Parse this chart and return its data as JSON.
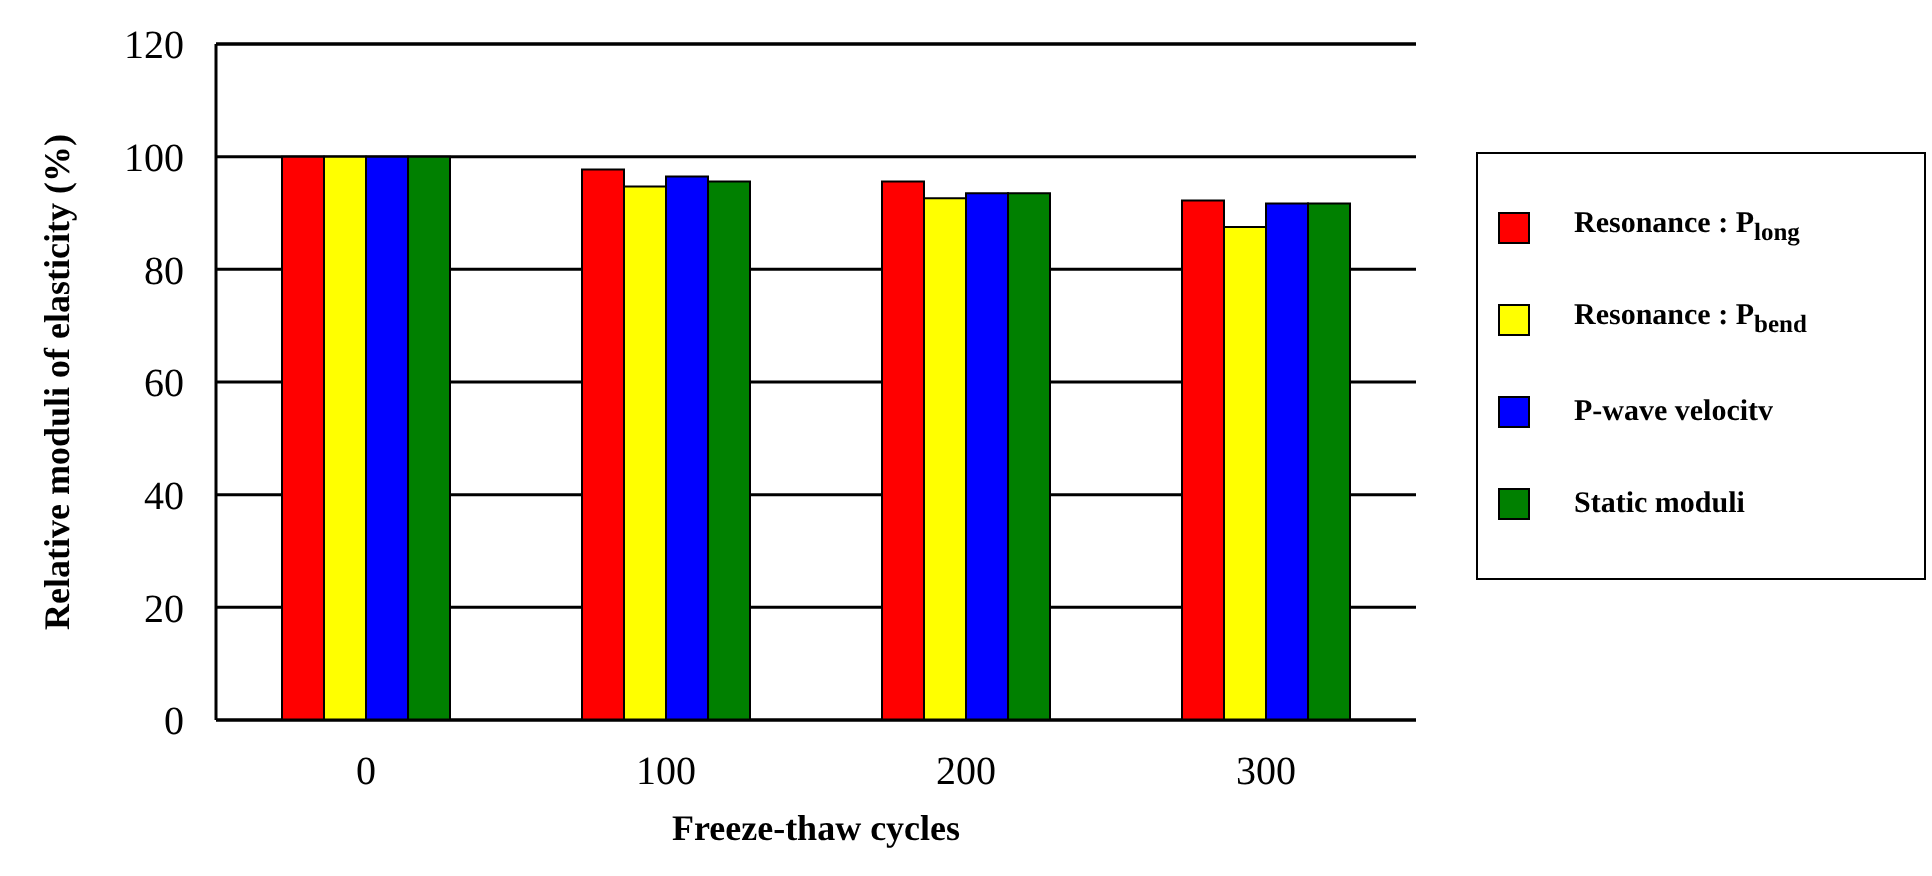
{
  "chart_data": {
    "type": "bar",
    "xlabel": "Freeze-thaw cycles",
    "ylabel": "Relative moduli of elasticity (%)",
    "categories": [
      "0",
      "100",
      "200",
      "300"
    ],
    "series": [
      {
        "name": "Resonance : P$_{long}$",
        "color": "#ff0000",
        "values": [
          100,
          97.7,
          95.6,
          92.2
        ]
      },
      {
        "name": "Resonance : P$_{bend}$",
        "color": "#ffff00",
        "values": [
          100,
          94.7,
          92.6,
          87.5
        ]
      },
      {
        "name": "P-wave velocitv",
        "color": "#0000ff",
        "values": [
          100,
          96.5,
          93.5,
          91.7
        ]
      },
      {
        "name": "Static moduli",
        "color": "#008000",
        "values": [
          100,
          95.6,
          93.5,
          91.7
        ]
      }
    ],
    "ylim": [
      0,
      120
    ],
    "yticks": [
      0,
      20,
      40,
      60,
      80,
      100,
      120
    ],
    "grid": "y",
    "legend": "right"
  }
}
